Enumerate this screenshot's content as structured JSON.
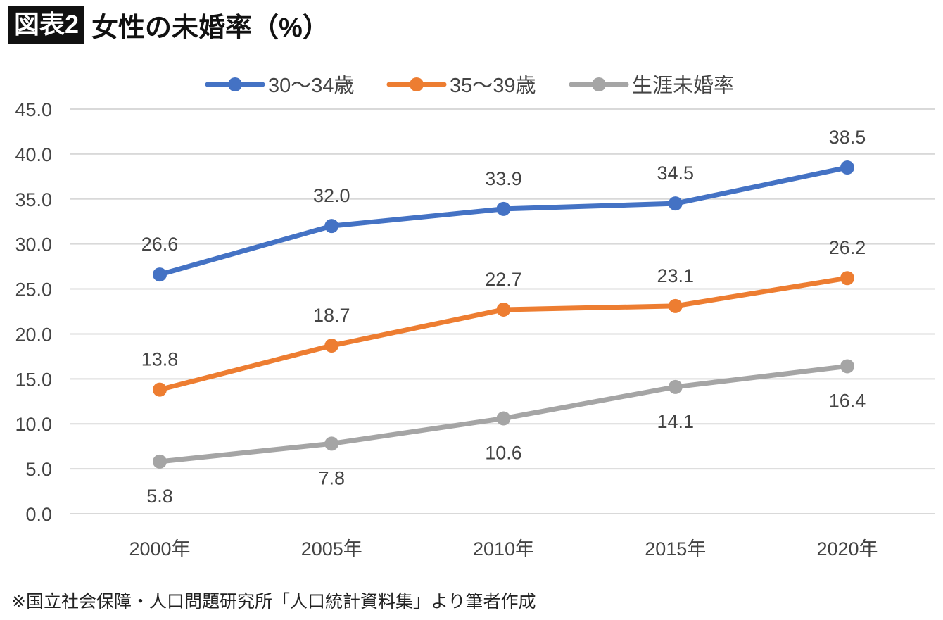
{
  "header": {
    "badge": "図表2",
    "title": "女性の未婚率（%）"
  },
  "footer": "※国立社会保障・人口問題研究所「人口統計資料集」より筆者作成",
  "chart_data": {
    "type": "line",
    "title": "女性の未婚率（%）",
    "xlabel": "",
    "ylabel": "",
    "categories": [
      "2000年",
      "2005年",
      "2010年",
      "2015年",
      "2020年"
    ],
    "ylim": [
      0,
      45
    ],
    "yticks": [
      "0.0",
      "5.0",
      "10.0",
      "15.0",
      "20.0",
      "25.0",
      "30.0",
      "35.0",
      "40.0",
      "45.0"
    ],
    "grid": true,
    "legend_position": "top-center",
    "series": [
      {
        "name": "30～34歳",
        "color": "#4472C4",
        "values": [
          26.6,
          32.0,
          33.9,
          34.5,
          38.5
        ],
        "labels": [
          "26.6",
          "32.0",
          "33.9",
          "34.5",
          "38.5"
        ],
        "label_pos": "above"
      },
      {
        "name": "35～39歳",
        "color": "#ED7D31",
        "values": [
          13.8,
          18.7,
          22.7,
          23.1,
          26.2
        ],
        "labels": [
          "13.8",
          "18.7",
          "22.7",
          "23.1",
          "26.2"
        ],
        "label_pos": "above"
      },
      {
        "name": "生涯未婚率",
        "color": "#A5A5A5",
        "values": [
          5.8,
          7.8,
          10.6,
          14.1,
          16.4
        ],
        "labels": [
          "5.8",
          "7.8",
          "10.6",
          "14.1",
          "16.4"
        ],
        "label_pos": "below"
      }
    ]
  }
}
